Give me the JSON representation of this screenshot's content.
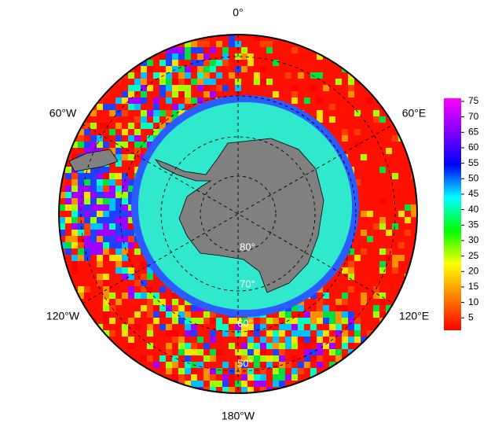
{
  "map": {
    "longitude_labels": [
      "0°",
      "60°E",
      "120°E",
      "180°W",
      "120°W",
      "60°W"
    ],
    "latitude_labels": [
      "80°",
      "70°",
      "60°",
      "50°"
    ],
    "colorbar": {
      "lim": [
        1,
        76
      ],
      "ticks": [
        5,
        10,
        15,
        20,
        25,
        30,
        35,
        40,
        45,
        50,
        55,
        60,
        65,
        70,
        75
      ],
      "colors": [
        "#ff0000",
        "#ff8000",
        "#ffff00",
        "#00ff00",
        "#00ffff",
        "#0000ff",
        "#8000ff",
        "#ff00ff"
      ]
    }
  }
}
